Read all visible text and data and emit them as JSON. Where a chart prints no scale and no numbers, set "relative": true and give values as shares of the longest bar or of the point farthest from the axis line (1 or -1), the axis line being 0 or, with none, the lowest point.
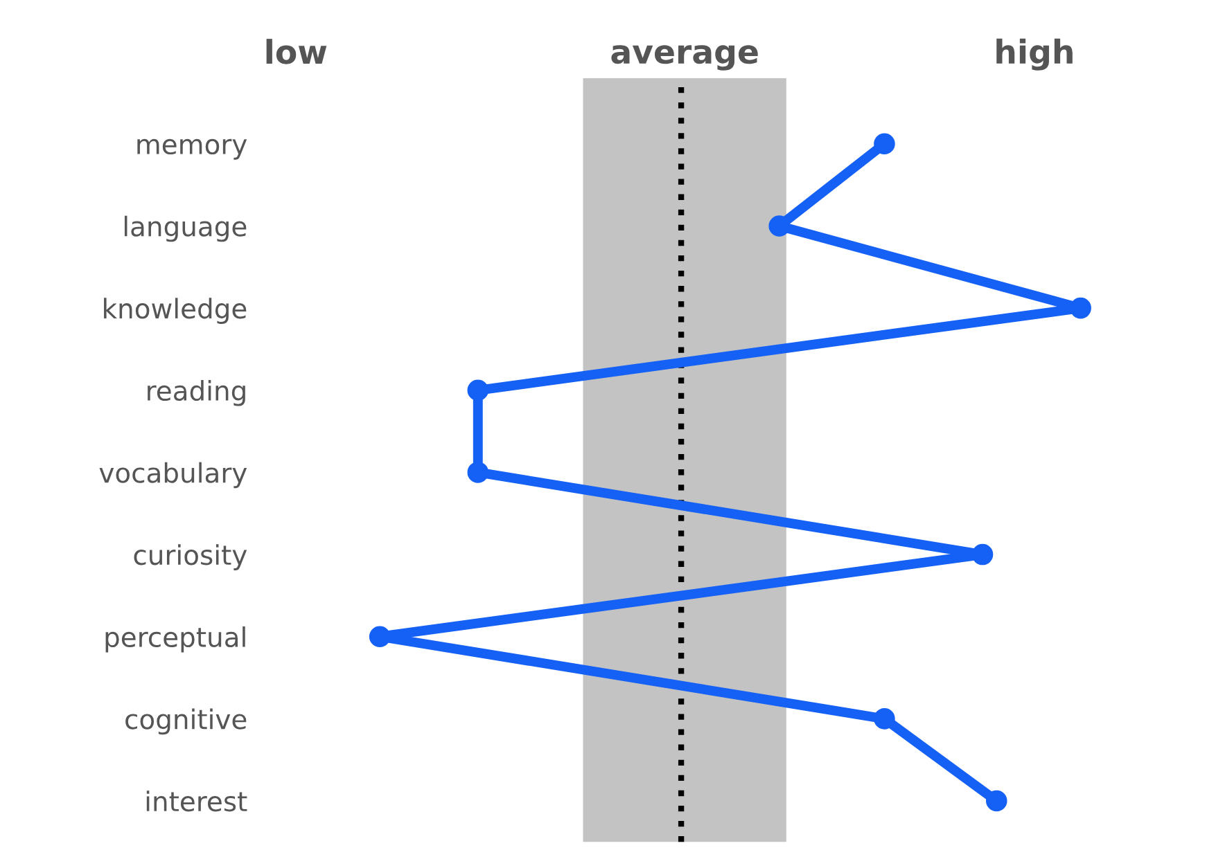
{
  "chart_data": {
    "type": "line",
    "orientation": "horizontal",
    "relative": true,
    "categories": [
      "memory",
      "language",
      "knowledge",
      "reading",
      "vocabulary",
      "curiosity",
      "perceptual",
      "cognitive",
      "interest"
    ],
    "series": [
      {
        "color": "#1560f5",
        "values": [
          0.72,
          0.57,
          1,
          0.14,
          0.14,
          0.86,
          0,
          0.72,
          0.88
        ]
      }
    ],
    "marker": "circle",
    "bands": [
      {
        "axis": "x",
        "from": 0.29,
        "to": 0.58,
        "label": "average",
        "color": "#c3c3c3"
      }
    ],
    "ref_lines": [
      {
        "axis": "x",
        "value": 0.43,
        "line_style": "dotted",
        "color": "#000000"
      }
    ],
    "annotations": [
      "low",
      "high"
    ]
  }
}
